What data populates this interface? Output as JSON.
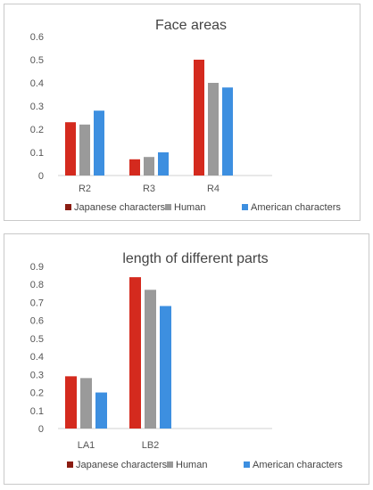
{
  "chart_data": [
    {
      "type": "bar",
      "title": "Face areas",
      "categories": [
        "R2",
        "R3",
        "R4"
      ],
      "series": [
        {
          "name": "Japanese characters",
          "values": [
            0.23,
            0.07,
            0.5
          ]
        },
        {
          "name": "Human",
          "values": [
            0.22,
            0.08,
            0.4
          ]
        },
        {
          "name": "American characters",
          "values": [
            0.28,
            0.1,
            0.38
          ]
        }
      ],
      "ylim": [
        0,
        0.6
      ],
      "yticks": [
        "0",
        "0.1",
        "0.2",
        "0.3",
        "0.4",
        "0.5",
        "0.6"
      ],
      "grid": false,
      "legend": "bottom"
    },
    {
      "type": "bar",
      "title": "length of different parts",
      "categories": [
        "LA1",
        "LB2"
      ],
      "series": [
        {
          "name": "Japanese characters",
          "values": [
            0.29,
            0.84
          ]
        },
        {
          "name": "Human",
          "values": [
            0.28,
            0.77
          ]
        },
        {
          "name": "American characters",
          "values": [
            0.2,
            0.68
          ]
        }
      ],
      "ylim": [
        0,
        0.9
      ],
      "yticks": [
        "0",
        "0.1",
        "0.2",
        "0.3",
        "0.4",
        "0.5",
        "0.6",
        "0.7",
        "0.8",
        "0.9"
      ],
      "grid": false,
      "legend": "bottom"
    }
  ],
  "colors": {
    "japanese": "#d42a1e",
    "japanese_marker": "#8b1c12",
    "human": "#9a9a9a",
    "american": "#3d8fe0"
  }
}
